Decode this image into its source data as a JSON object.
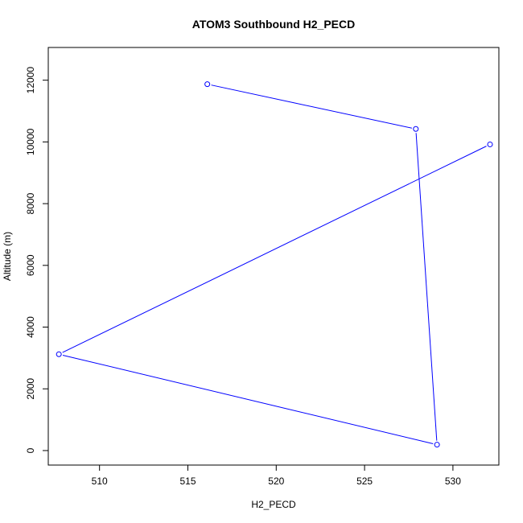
{
  "chart_data": {
    "type": "line",
    "title": "ATOM3 Southbound H2_PECD",
    "xlabel": "H2_PECD",
    "ylabel": "Altitude (m)",
    "xlim": [
      507.1,
      532.6
    ],
    "ylim": [
      -470,
      13060
    ],
    "x_ticks": [
      510,
      515,
      520,
      525,
      530
    ],
    "y_ticks": [
      0,
      2000,
      4000,
      6000,
      8000,
      10000,
      12000
    ],
    "grid": false,
    "legend": "none",
    "series": [
      {
        "color": "#0000ff",
        "marker": "open-circle",
        "points": [
          {
            "x": 516.1,
            "y": 11870
          },
          {
            "x": 527.9,
            "y": 10420
          },
          {
            "x": 529.1,
            "y": 190
          },
          {
            "x": 507.7,
            "y": 3120
          },
          {
            "x": 532.1,
            "y": 9920
          }
        ]
      }
    ]
  }
}
